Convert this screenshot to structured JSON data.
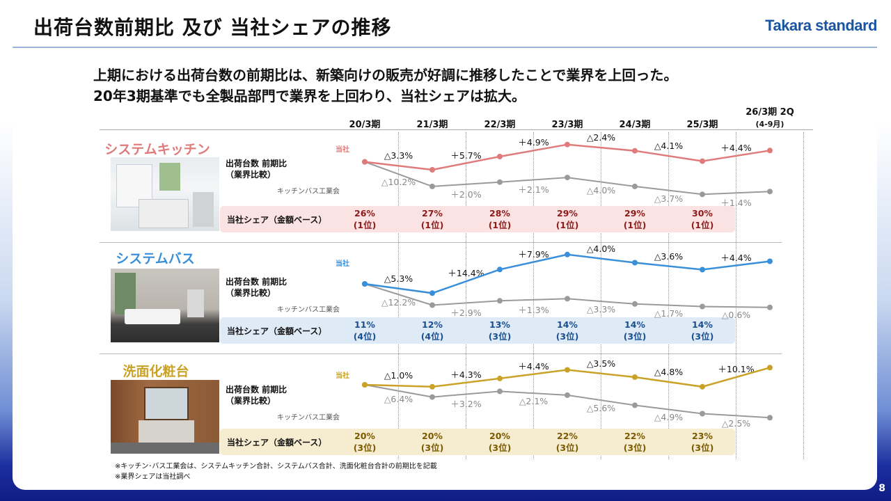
{
  "title": "出荷台数前期比 及び 当社シェアの推移",
  "logo": "Takara standard",
  "lead": [
    "上期における出荷台数の前期比は、新築向けの販売が好調に推移したことで業界を上回った。",
    "20年3期基準でも全製品部門で業界を上回わり、当社シェアは拡大。"
  ],
  "periods": [
    "20/3期",
    "21/3期",
    "22/3期",
    "23/3期",
    "24/3期",
    "25/3期"
  ],
  "period_last": {
    "label": "26/3期 2Q",
    "sub": "(4-9月)"
  },
  "labels": {
    "ship": "出荷台数 前期比",
    "ship_sub": "（業界比較）",
    "industry": "キッチンバス工業会",
    "ours": "当社",
    "share": "当社シェア（金額ベース）"
  },
  "notes": [
    "※キッチン･バス工業会は、システムキッチン合計、システムバス合計、洗面化粧台合計の前期比を記載",
    "※業界シェアは当社調べ"
  ],
  "page_number": "8",
  "chart_data": [
    {
      "type": "line",
      "category": "システムキッチン",
      "colors": {
        "accent": "#e07b7b",
        "industry": "#9a9a9a",
        "share_bg": "#fbe3e3",
        "share_text": "#8b1a1a"
      },
      "x": [
        "20/3期",
        "21/3期",
        "22/3期",
        "23/3期",
        "24/3期",
        "25/3期",
        "26/3期 2Q"
      ],
      "company_labels": [
        "△3.3%",
        "＋5.7%",
        "＋4.9%",
        "△2.4%",
        "△4.1%",
        "＋4.4%"
      ],
      "industry_labels": [
        "△10.2%",
        "＋2.0%",
        "＋2.1%",
        "△4.0%",
        "△3.7%",
        "＋1.4%"
      ],
      "company_index": [
        100,
        96.7,
        102.2,
        107.2,
        104.6,
        100.3,
        104.7
      ],
      "industry_index": [
        100,
        89.8,
        91.6,
        93.5,
        89.8,
        86.5,
        87.7
      ],
      "share": [
        {
          "v": "26%",
          "r": "(1位)"
        },
        {
          "v": "27%",
          "r": "(1位)"
        },
        {
          "v": "28%",
          "r": "(1位)"
        },
        {
          "v": "29%",
          "r": "(1位)"
        },
        {
          "v": "29%",
          "r": "(1位)"
        },
        {
          "v": "30%",
          "r": "(1位)"
        }
      ]
    },
    {
      "type": "line",
      "category": "システムバス",
      "colors": {
        "accent": "#3a8fd9",
        "industry": "#9a9a9a",
        "share_bg": "#dfeaf7",
        "share_text": "#1a4f8f"
      },
      "x": [
        "20/3期",
        "21/3期",
        "22/3期",
        "23/3期",
        "24/3期",
        "25/3期",
        "26/3期 2Q"
      ],
      "company_labels": [
        "△5.3%",
        "＋14.4%",
        "＋7.9%",
        "△4.0%",
        "△3.6%",
        "＋4.4%"
      ],
      "industry_labels": [
        "△12.2%",
        "＋2.9%",
        "＋1.3%",
        "△3.3%",
        "△1.7%",
        "△0.6%"
      ],
      "company_index": [
        100,
        94.7,
        108.3,
        116.9,
        112.2,
        108.2,
        113.0
      ],
      "industry_index": [
        100,
        87.8,
        90.3,
        91.5,
        88.5,
        87.0,
        86.5
      ],
      "share": [
        {
          "v": "11%",
          "r": "(4位)"
        },
        {
          "v": "12%",
          "r": "(4位)"
        },
        {
          "v": "13%",
          "r": "(3位)"
        },
        {
          "v": "14%",
          "r": "(3位)"
        },
        {
          "v": "14%",
          "r": "(3位)"
        },
        {
          "v": "14%",
          "r": "(3位)"
        }
      ]
    },
    {
      "type": "line",
      "category": "洗面化粧台",
      "colors": {
        "accent": "#c9a227",
        "industry": "#9a9a9a",
        "share_bg": "#f6ecd0",
        "share_text": "#7a5a00"
      },
      "x": [
        "20/3期",
        "21/3期",
        "22/3期",
        "23/3期",
        "24/3期",
        "25/3期",
        "26/3期 2Q"
      ],
      "company_labels": [
        "△1.0%",
        "＋4.3%",
        "＋4.4%",
        "△3.5%",
        "△4.8%",
        "＋10.1%"
      ],
      "industry_labels": [
        "△6.4%",
        "＋3.2%",
        "△2.1%",
        "△5.6%",
        "△4.9%",
        "△2.5%"
      ],
      "company_index": [
        100,
        99.0,
        103.3,
        107.8,
        104.0,
        99.0,
        109.0
      ],
      "industry_index": [
        100,
        93.6,
        96.6,
        94.6,
        89.3,
        84.9,
        82.8
      ],
      "share": [
        {
          "v": "20%",
          "r": "(3位)"
        },
        {
          "v": "20%",
          "r": "(3位)"
        },
        {
          "v": "20%",
          "r": "(3位)"
        },
        {
          "v": "22%",
          "r": "(3位)"
        },
        {
          "v": "22%",
          "r": "(3位)"
        },
        {
          "v": "23%",
          "r": "(3位)"
        }
      ]
    }
  ]
}
